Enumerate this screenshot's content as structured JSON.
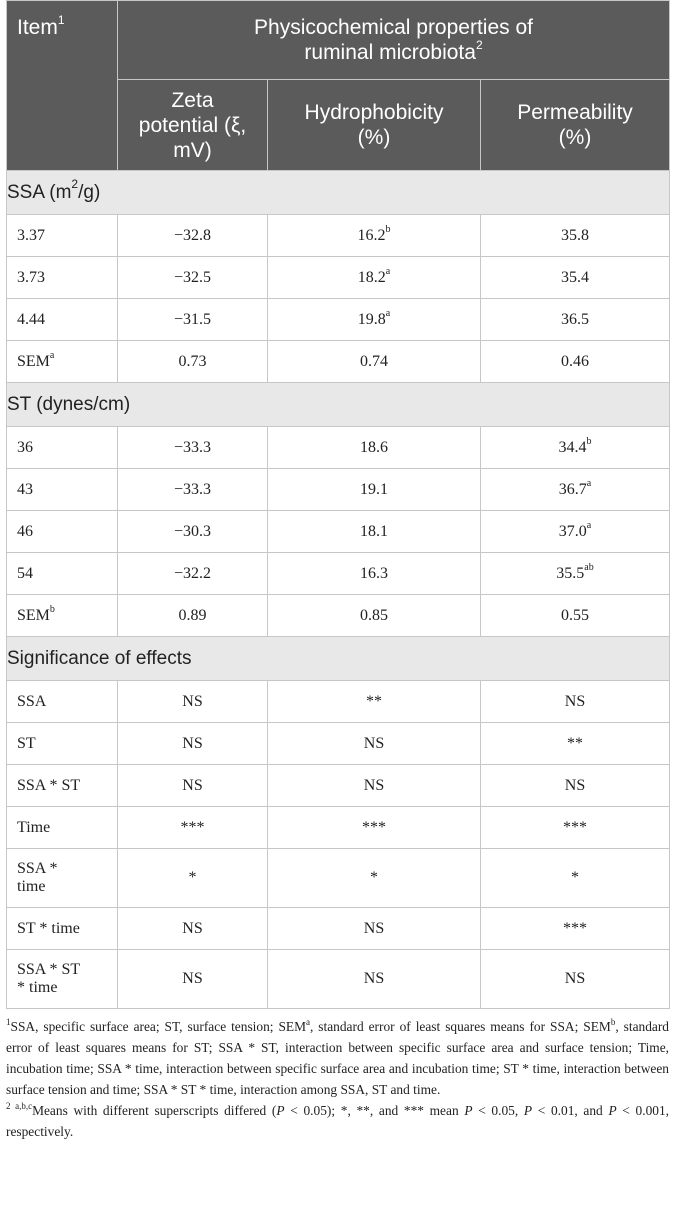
{
  "header": {
    "item": "Item",
    "item_sup": "1",
    "group": "Physicochemical properties of ruminal microbiota",
    "group_sup": "2",
    "col_zeta": "Zeta potential (ξ, mV)",
    "col_hydro": "Hydrophobicity (%)",
    "col_perm": "Permeability (%)"
  },
  "sections": {
    "ssa": {
      "title": "SSA (m",
      "title_sup": "2",
      "title_end": "/g)"
    },
    "st": {
      "title": "ST (dynes/cm)"
    },
    "sig": {
      "title": "Significance of effects"
    }
  },
  "ssa_rows": [
    {
      "label": "3.37",
      "label_sup": "",
      "zeta": "−32.8",
      "zeta_sup": "",
      "hydro": "16.2",
      "hydro_sup": "b",
      "perm": "35.8",
      "perm_sup": ""
    },
    {
      "label": "3.73",
      "label_sup": "",
      "zeta": "−32.5",
      "zeta_sup": "",
      "hydro": "18.2",
      "hydro_sup": "a",
      "perm": "35.4",
      "perm_sup": ""
    },
    {
      "label": "4.44",
      "label_sup": "",
      "zeta": "−31.5",
      "zeta_sup": "",
      "hydro": "19.8",
      "hydro_sup": "a",
      "perm": "36.5",
      "perm_sup": ""
    },
    {
      "label": "SEM",
      "label_sup": "a",
      "zeta": "0.73",
      "zeta_sup": "",
      "hydro": "0.74",
      "hydro_sup": "",
      "perm": "0.46",
      "perm_sup": ""
    }
  ],
  "st_rows": [
    {
      "label": "36",
      "label_sup": "",
      "zeta": "−33.3",
      "zeta_sup": "",
      "hydro": "18.6",
      "hydro_sup": "",
      "perm": "34.4",
      "perm_sup": "b"
    },
    {
      "label": "43",
      "label_sup": "",
      "zeta": "−33.3",
      "zeta_sup": "",
      "hydro": "19.1",
      "hydro_sup": "",
      "perm": "36.7",
      "perm_sup": "a"
    },
    {
      "label": "46",
      "label_sup": "",
      "zeta": "−30.3",
      "zeta_sup": "",
      "hydro": "18.1",
      "hydro_sup": "",
      "perm": "37.0",
      "perm_sup": "a"
    },
    {
      "label": "54",
      "label_sup": "",
      "zeta": "−32.2",
      "zeta_sup": "",
      "hydro": "16.3",
      "hydro_sup": "",
      "perm": "35.5",
      "perm_sup": "ab"
    },
    {
      "label": "SEM",
      "label_sup": "b",
      "zeta": "0.89",
      "zeta_sup": "",
      "hydro": "0.85",
      "hydro_sup": "",
      "perm": "0.55",
      "perm_sup": ""
    }
  ],
  "sig_rows": [
    {
      "label": "SSA",
      "zeta": "NS",
      "hydro": "**",
      "perm": "NS"
    },
    {
      "label": "ST",
      "zeta": "NS",
      "hydro": "NS",
      "perm": "**"
    },
    {
      "label": "SSA * ST",
      "zeta": "NS",
      "hydro": "NS",
      "perm": "NS"
    },
    {
      "label": "Time",
      "zeta": "***",
      "hydro": "***",
      "perm": "***"
    },
    {
      "label": "SSA * time",
      "zeta": "*",
      "hydro": "*",
      "perm": "*"
    },
    {
      "label": "ST * time",
      "zeta": "NS",
      "hydro": "NS",
      "perm": "***"
    },
    {
      "label": "SSA * ST * time",
      "zeta": "NS",
      "hydro": "NS",
      "perm": "NS"
    }
  ],
  "footnotes": {
    "fn1_mark": "1",
    "fn1_a": "SSA, specific surface area; ST, surface tension; SEM",
    "fn1_sup_a": "a",
    "fn1_b": ", standard error of least squares means for SSA; SEM",
    "fn1_sup_b": "b",
    "fn1_c": ", standard error of least squares means for ST; SSA * ST, interaction between specific surface area and surface tension; Time, incubation time; SSA * time, interaction between specific surface area and incubation time; ST * time, interaction between surface tension and time; SSA * ST * time, interaction among SSA, ST and time.",
    "fn2_mark": "2 a,b,c",
    "fn2_a": "Means with different superscripts differed (",
    "fn2_p1": "P",
    "fn2_b": " < 0.05); *, **, and *** mean ",
    "fn2_p2": "P",
    "fn2_c": " < 0.05, ",
    "fn2_p3": "P",
    "fn2_d": " < 0.01, and ",
    "fn2_p4": "P",
    "fn2_e": " < 0.001, respectively."
  }
}
